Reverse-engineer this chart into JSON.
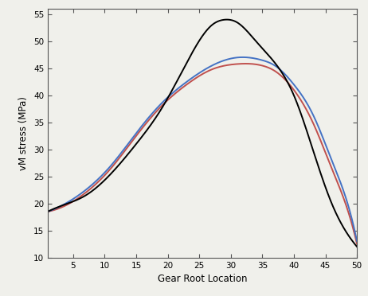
{
  "title": "",
  "xlabel": "Gear Root Location",
  "ylabel": "vM stress (MPa)",
  "xlim": [
    1,
    50
  ],
  "ylim": [
    10,
    56
  ],
  "xticks": [
    5,
    10,
    15,
    20,
    25,
    30,
    35,
    40,
    45,
    50
  ],
  "yticks": [
    10,
    15,
    20,
    25,
    30,
    35,
    40,
    45,
    50,
    55
  ],
  "background_color": "#f0f0eb",
  "black_x": [
    1,
    3,
    7,
    11,
    15,
    19,
    23,
    27,
    29,
    31,
    34,
    37,
    40,
    43,
    46,
    49,
    50
  ],
  "black_y": [
    18.5,
    19.5,
    21.5,
    25.5,
    31,
    37.5,
    46,
    53,
    54,
    53.5,
    50,
    46,
    40,
    30,
    20,
    13.5,
    12
  ],
  "blue_x": [
    1,
    3,
    7,
    11,
    15,
    19,
    23,
    27,
    31,
    35,
    37,
    40,
    43,
    46,
    49,
    50
  ],
  "blue_y": [
    18.5,
    19.5,
    22.5,
    27,
    33,
    38.5,
    42.5,
    45.5,
    47,
    46.5,
    45.5,
    42,
    36.5,
    28,
    18,
    13
  ],
  "red_x": [
    1,
    3,
    7,
    11,
    15,
    19,
    23,
    27,
    31,
    35,
    37,
    40,
    43,
    46,
    49,
    50
  ],
  "red_y": [
    18.5,
    19.2,
    22,
    26.5,
    32.5,
    38,
    42,
    44.8,
    45.8,
    45.5,
    44.5,
    41,
    35,
    26.5,
    17,
    12.5
  ],
  "line_colors": [
    "#000000",
    "#4472c4",
    "#c0504d"
  ],
  "linewidth": 1.4,
  "tick_fontsize": 7.5,
  "label_fontsize": 8.5
}
